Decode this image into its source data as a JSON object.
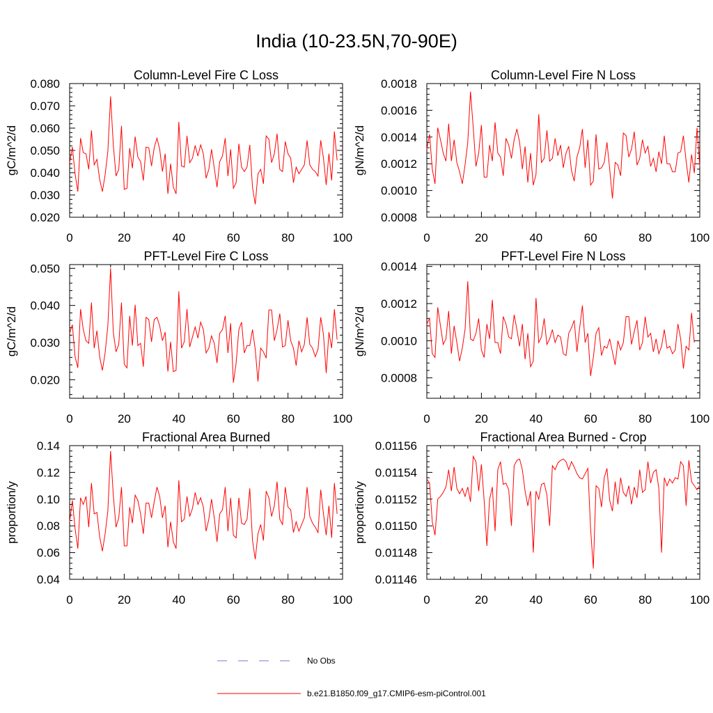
{
  "figure_title": "India (10-23.5N,70-90E)",
  "legend": [
    {
      "label": "No Obs",
      "style": "dashed",
      "color": "#7777cc"
    },
    {
      "label": "b.e21.B1850.f09_g17.CMIP6-esm-piControl.001",
      "style": "solid",
      "color": "#ff0000"
    }
  ],
  "chart_data": [
    {
      "type": "line",
      "title": "Column-Level Fire C Loss",
      "ylabel": "gC/m^2/d",
      "xlabel": "",
      "xlim": [
        0,
        100
      ],
      "ylim": [
        0.02,
        0.08
      ],
      "xticks": [
        0,
        20,
        40,
        60,
        80,
        100
      ],
      "xtick_labels": [
        "0",
        "20",
        "40",
        "60",
        "80",
        "100"
      ],
      "yticks": [
        0.02,
        0.03,
        0.04,
        0.05,
        0.06,
        0.07,
        0.08
      ],
      "ytick_labels": [
        "0.020",
        "0.030",
        "0.040",
        "0.050",
        "0.060",
        "0.070",
        "0.080"
      ],
      "series": [
        {
          "name": "b.e21.B1850.f09_g17.CMIP6-esm-piControl.001",
          "color": "#ff0000",
          "x_start": 0,
          "x_step": 1,
          "values": [
            0.0445,
            0.0515,
            0.0395,
            0.0315,
            0.0555,
            0.049,
            0.0485,
            0.0415,
            0.059,
            0.0435,
            0.046,
            0.037,
            0.0315,
            0.039,
            0.0495,
            0.0742,
            0.0525,
            0.0385,
            0.0415,
            0.061,
            0.0325,
            0.033,
            0.051,
            0.042,
            0.0562,
            0.047,
            0.045,
            0.0365,
            0.0515,
            0.0512,
            0.043,
            0.0512,
            0.0555,
            0.0505,
            0.0405,
            0.0485,
            0.0305,
            0.044,
            0.0335,
            0.0305,
            0.0628,
            0.043,
            0.0425,
            0.0565,
            0.0445,
            0.0465,
            0.0522,
            0.0475,
            0.0525,
            0.0485,
            0.0375,
            0.0415,
            0.0505,
            0.042,
            0.0335,
            0.045,
            0.0475,
            0.0555,
            0.0385,
            0.0505,
            0.033,
            0.0355,
            0.053,
            0.0425,
            0.0405,
            0.0425,
            0.0525,
            0.0335,
            0.0258,
            0.0395,
            0.0415,
            0.035,
            0.0565,
            0.055,
            0.0445,
            0.0485,
            0.0575,
            0.0415,
            0.0405,
            0.054,
            0.0485,
            0.0465,
            0.0355,
            0.0425,
            0.0395,
            0.0415,
            0.0435,
            0.0545,
            0.0435,
            0.0415,
            0.0405,
            0.0385,
            0.0545,
            0.0465,
            0.0345,
            0.0485,
            0.0365,
            0.0585,
            0.0455
          ]
        }
      ]
    },
    {
      "type": "line",
      "title": "Column-Level Fire N Loss",
      "ylabel": "gN/m^2/d",
      "xlabel": "",
      "xlim": [
        0,
        100
      ],
      "ylim": [
        0.0008,
        0.0018
      ],
      "xticks": [
        0,
        20,
        40,
        60,
        80,
        100
      ],
      "xtick_labels": [
        "0",
        "20",
        "40",
        "60",
        "80",
        "100"
      ],
      "yticks": [
        0.0008,
        0.001,
        0.0012,
        0.0014,
        0.0016,
        0.0018
      ],
      "ytick_labels": [
        "0.0008",
        "0.0010",
        "0.0012",
        "0.0014",
        "0.0016",
        "0.0018"
      ],
      "series": [
        {
          "name": "b.e21.B1850.f09_g17.CMIP6-esm-piControl.001",
          "color": "#ff0000",
          "x_start": 0,
          "x_step": 1,
          "values": [
            0.00131,
            0.00142,
            0.00116,
            0.00105,
            0.00147,
            0.00138,
            0.00128,
            0.00122,
            0.0015,
            0.00122,
            0.00138,
            0.00121,
            0.00114,
            0.00105,
            0.00119,
            0.00136,
            0.00174,
            0.00147,
            0.00118,
            0.00128,
            0.00149,
            0.0011,
            0.0011,
            0.00134,
            0.00122,
            0.00151,
            0.00128,
            0.00125,
            0.00111,
            0.00139,
            0.00134,
            0.00124,
            0.00138,
            0.00146,
            0.00136,
            0.00116,
            0.00133,
            0.00106,
            0.00128,
            0.00104,
            0.00112,
            0.00157,
            0.00121,
            0.00124,
            0.00145,
            0.00122,
            0.00124,
            0.00139,
            0.00126,
            0.00134,
            0.00117,
            0.00128,
            0.00133,
            0.00115,
            0.00107,
            0.00125,
            0.00132,
            0.00146,
            0.00117,
            0.00138,
            0.00104,
            0.00107,
            0.00142,
            0.00116,
            0.00117,
            0.00121,
            0.00136,
            0.00116,
            0.00094,
            0.00121,
            0.00119,
            0.00111,
            0.00143,
            0.00141,
            0.00125,
            0.00131,
            0.00144,
            0.00119,
            0.00124,
            0.00138,
            0.00128,
            0.00133,
            0.00118,
            0.00124,
            0.00114,
            0.00129,
            0.0012,
            0.00141,
            0.0012,
            0.0012,
            0.00114,
            0.00114,
            0.00128,
            0.00129,
            0.00141,
            0.00122,
            0.00106,
            0.00127,
            0.00113,
            0.00147,
            0.00118
          ]
        }
      ]
    },
    {
      "type": "line",
      "title": "PFT-Level Fire C Loss",
      "ylabel": "gC/m^2/d",
      "xlabel": "",
      "xlim": [
        0,
        100
      ],
      "ylim": [
        0.015,
        0.051
      ],
      "xticks": [
        0,
        20,
        40,
        60,
        80,
        100
      ],
      "xtick_labels": [
        "0",
        "20",
        "40",
        "60",
        "80",
        "100"
      ],
      "yticks": [
        0.02,
        0.03,
        0.04,
        0.05
      ],
      "ytick_labels": [
        "0.020",
        "0.030",
        "0.040",
        "0.050"
      ],
      "series": [
        {
          "name": "b.e21.B1850.f09_g17.CMIP6-esm-piControl.001",
          "color": "#ff0000",
          "x_start": 0,
          "x_step": 1,
          "values": [
            0.0325,
            0.0348,
            0.0262,
            0.0232,
            0.039,
            0.0335,
            0.0305,
            0.0298,
            0.0408,
            0.0285,
            0.0332,
            0.0262,
            0.0225,
            0.0272,
            0.0345,
            0.05,
            0.0328,
            0.0275,
            0.0295,
            0.0408,
            0.0242,
            0.0232,
            0.0372,
            0.0292,
            0.0402,
            0.0292,
            0.0298,
            0.0235,
            0.0368,
            0.0362,
            0.0302,
            0.0362,
            0.0368,
            0.0345,
            0.0305,
            0.0328,
            0.0222,
            0.0302,
            0.0222,
            0.0225,
            0.0438,
            0.0285,
            0.0302,
            0.039,
            0.0288,
            0.0315,
            0.0342,
            0.0312,
            0.0355,
            0.0335,
            0.0272,
            0.0285,
            0.0318,
            0.0298,
            0.0245,
            0.0325,
            0.0335,
            0.0372,
            0.0272,
            0.0352,
            0.0192,
            0.0245,
            0.0335,
            0.0355,
            0.0272,
            0.0292,
            0.0292,
            0.0335,
            0.0282,
            0.0195,
            0.0285,
            0.0275,
            0.0258,
            0.0388,
            0.0388,
            0.0305,
            0.0335,
            0.0378,
            0.0288,
            0.0292,
            0.036,
            0.0305,
            0.0285,
            0.0238,
            0.0305,
            0.0275,
            0.0295,
            0.0368,
            0.0295,
            0.0285,
            0.0262,
            0.0282,
            0.0368,
            0.0322,
            0.0218,
            0.0328,
            0.0285,
            0.039,
            0.0308
          ]
        }
      ]
    },
    {
      "type": "line",
      "title": "PFT-Level Fire N Loss",
      "ylabel": "gN/m^2/d",
      "xlabel": "",
      "xlim": [
        0,
        100
      ],
      "ylim": [
        0.00069,
        0.00141
      ],
      "xticks": [
        0,
        20,
        40,
        60,
        80,
        100
      ],
      "xtick_labels": [
        "0",
        "20",
        "40",
        "60",
        "80",
        "100"
      ],
      "yticks": [
        0.0008,
        0.001,
        0.0012,
        0.0014
      ],
      "ytick_labels": [
        "0.0008",
        "0.0010",
        "0.0012",
        "0.0014"
      ],
      "series": [
        {
          "name": "b.e21.B1850.f09_g17.CMIP6-esm-piControl.001",
          "color": "#ff0000",
          "x_start": 0,
          "x_step": 1,
          "values": [
            0.00109,
            0.00112,
            0.00093,
            0.00091,
            0.00118,
            0.00108,
            0.00098,
            0.00101,
            0.00116,
            0.00093,
            0.00108,
            0.00099,
            0.00089,
            0.00096,
            0.00106,
            0.00132,
            0.00101,
            0.001,
            0.00104,
            0.00112,
            0.00095,
            0.00091,
            0.00109,
            0.00101,
            0.00122,
            0.00099,
            0.00099,
            0.00093,
            0.00113,
            0.00109,
            0.00102,
            0.00101,
            0.00114,
            0.00106,
            0.00097,
            0.00109,
            0.0009,
            0.00104,
            0.00086,
            0.00089,
            0.00123,
            0.00099,
            0.00102,
            0.00112,
            0.00098,
            0.00101,
            0.00106,
            0.00099,
            0.00103,
            0.00102,
            0.00093,
            0.00092,
            0.00104,
            0.00107,
            0.00111,
            0.00094,
            0.00107,
            0.00119,
            0.00099,
            0.00104,
            0.00081,
            0.00091,
            0.00104,
            0.00107,
            0.00092,
            0.00097,
            0.00096,
            0.00101,
            0.00094,
            0.00087,
            0.001,
            0.00095,
            0.00099,
            0.00113,
            0.00113,
            0.00098,
            0.00105,
            0.00111,
            0.00095,
            0.00099,
            0.00113,
            0.00102,
            0.00104,
            0.00094,
            0.00101,
            0.00093,
            0.00097,
            0.00106,
            0.00096,
            0.00097,
            0.00093,
            0.00095,
            0.00109,
            0.00101,
            0.00085,
            0.00097,
            0.00095,
            0.00115,
            0.00099
          ]
        }
      ]
    },
    {
      "type": "line",
      "title": "Fractional Area Burned",
      "ylabel": "proportion/y",
      "xlabel": "",
      "xlim": [
        0,
        100
      ],
      "ylim": [
        0.04,
        0.14
      ],
      "xticks": [
        0,
        20,
        40,
        60,
        80,
        100
      ],
      "xtick_labels": [
        "0",
        "20",
        "40",
        "60",
        "80",
        "100"
      ],
      "yticks": [
        0.04,
        0.06,
        0.08,
        0.1,
        0.12,
        0.14
      ],
      "ytick_labels": [
        "0.04",
        "0.06",
        "0.08",
        "0.10",
        "0.12",
        "0.14"
      ],
      "series": [
        {
          "name": "b.e21.B1850.f09_g17.CMIP6-esm-piControl.001",
          "color": "#ff0000",
          "x_start": 0,
          "x_step": 1,
          "values": [
            0.083,
            0.099,
            0.078,
            0.063,
            0.101,
            0.096,
            0.102,
            0.079,
            0.112,
            0.089,
            0.09,
            0.072,
            0.061,
            0.074,
            0.091,
            0.136,
            0.103,
            0.079,
            0.086,
            0.109,
            0.065,
            0.065,
            0.094,
            0.082,
            0.103,
            0.099,
            0.089,
            0.074,
            0.097,
            0.097,
            0.086,
            0.098,
            0.109,
            0.102,
            0.086,
            0.095,
            0.064,
            0.083,
            0.068,
            0.063,
            0.114,
            0.083,
            0.085,
            0.102,
            0.087,
            0.093,
            0.105,
            0.096,
            0.101,
            0.094,
            0.076,
            0.085,
            0.1,
            0.086,
            0.068,
            0.089,
            0.092,
            0.109,
            0.076,
            0.101,
            0.073,
            0.071,
            0.101,
            0.082,
            0.081,
            0.085,
            0.108,
            0.069,
            0.055,
            0.074,
            0.081,
            0.069,
            0.106,
            0.101,
            0.087,
            0.095,
            0.113,
            0.085,
            0.081,
            0.109,
            0.094,
            0.092,
            0.075,
            0.083,
            0.076,
            0.081,
            0.086,
            0.109,
            0.087,
            0.082,
            0.079,
            0.075,
            0.107,
            0.089,
            0.073,
            0.095,
            0.071,
            0.112,
            0.089
          ]
        }
      ]
    },
    {
      "type": "line",
      "title": "Fractional Area Burned - Crop",
      "ylabel": "proportion/y",
      "xlabel": "",
      "xlim": [
        0,
        100
      ],
      "ylim": [
        0.01146,
        0.01156
      ],
      "xticks": [
        0,
        20,
        40,
        60,
        80,
        100
      ],
      "xtick_labels": [
        "0",
        "20",
        "40",
        "60",
        "80",
        "100"
      ],
      "yticks": [
        0.01146,
        0.01148,
        0.0115,
        0.01152,
        0.01154,
        0.01156
      ],
      "ytick_labels": [
        "0.01146",
        "0.01148",
        "0.01150",
        "0.01152",
        "0.01154",
        "0.01156"
      ],
      "series": [
        {
          "name": "b.e21.B1850.f09_g17.CMIP6-esm-piControl.001",
          "color": "#ff0000",
          "x_start": 0,
          "x_step": 1,
          "values": [
            0.011535,
            0.011532,
            0.011503,
            0.011493,
            0.01152,
            0.011522,
            0.011525,
            0.011529,
            0.011542,
            0.011526,
            0.011544,
            0.011528,
            0.011524,
            0.011528,
            0.011522,
            0.011529,
            0.011518,
            0.011552,
            0.011548,
            0.011526,
            0.011546,
            0.011519,
            0.011485,
            0.01152,
            0.011529,
            0.011496,
            0.011542,
            0.011548,
            0.011531,
            0.011532,
            0.011527,
            0.0115,
            0.011545,
            0.011549,
            0.01155,
            0.011542,
            0.011526,
            0.011515,
            0.011526,
            0.01148,
            0.011526,
            0.01152,
            0.011531,
            0.011532,
            0.011523,
            0.0115,
            0.011545,
            0.011542,
            0.011547,
            0.011549,
            0.01155,
            0.011548,
            0.011542,
            0.011548,
            0.011544,
            0.011539,
            0.011536,
            0.011535,
            0.011539,
            0.011543,
            0.011498,
            0.011468,
            0.01153,
            0.011528,
            0.011514,
            0.011536,
            0.011543,
            0.011519,
            0.011511,
            0.011533,
            0.011516,
            0.011536,
            0.011525,
            0.011522,
            0.01153,
            0.011516,
            0.011529,
            0.011521,
            0.011542,
            0.011525,
            0.011527,
            0.011548,
            0.011532,
            0.01154,
            0.011542,
            0.011528,
            0.01148,
            0.011536,
            0.01153,
            0.011535,
            0.011532,
            0.011536,
            0.011535,
            0.011548,
            0.011545,
            0.011515,
            0.011549,
            0.011533,
            0.01153,
            0.011527,
            0.01153
          ]
        }
      ]
    }
  ]
}
